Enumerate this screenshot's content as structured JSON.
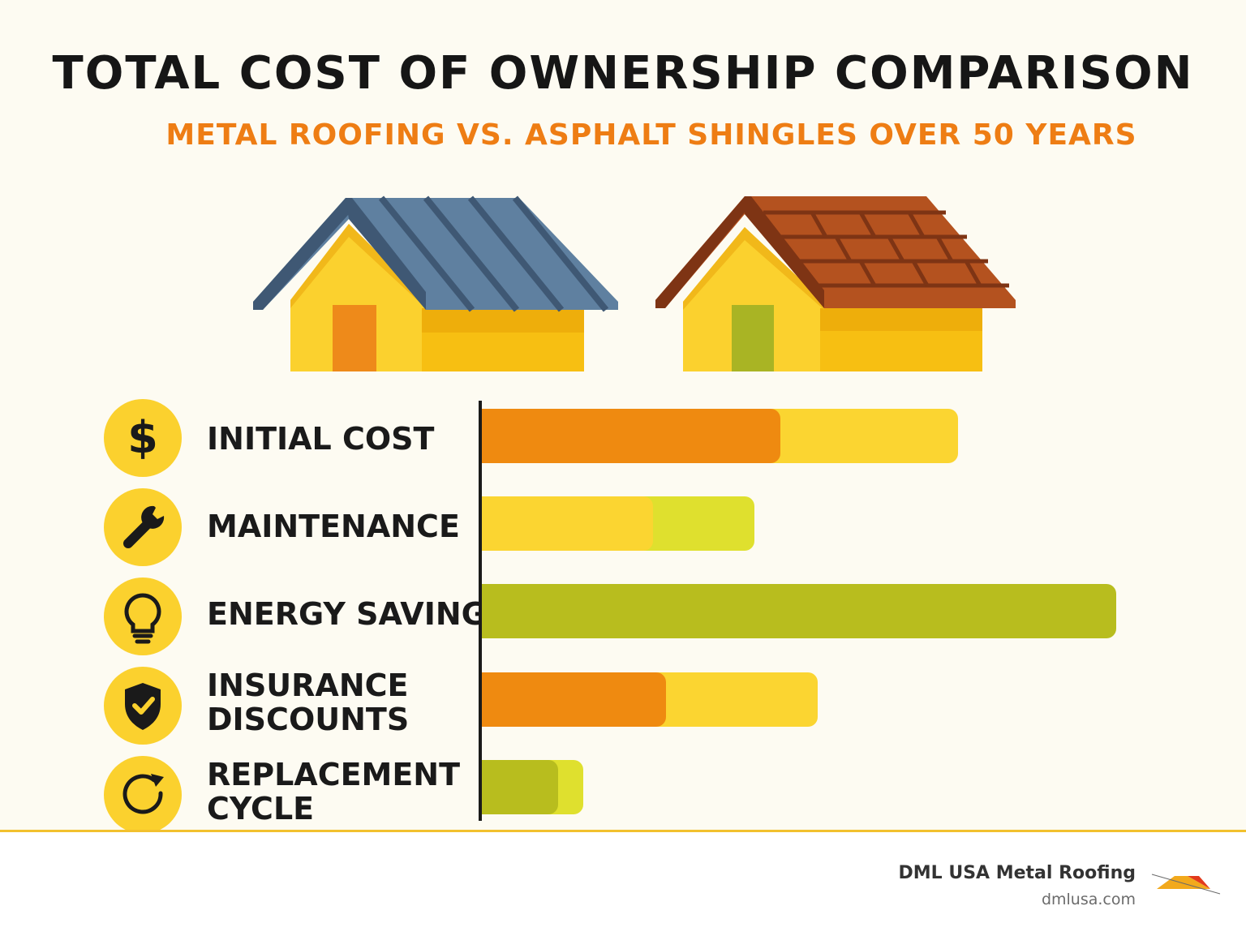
{
  "title": "TOTAL COST OF OWNERSHIP COMPARISON",
  "subtitle": "METAL ROOFING VS. ASPHALT SHINGLES OVER 50 YEARS",
  "colors": {
    "orange": "#ef8a10",
    "yellow": "#fbd531",
    "lime": "#dfe02e",
    "olive": "#b8bd1e",
    "subtitle": "#ee7d14",
    "icon_bg": "#fbd12e"
  },
  "houses": [
    {
      "roof": "metal",
      "roof_color": "#5f80a0",
      "door_color": "#ee8a1a"
    },
    {
      "roof": "asphalt shingles",
      "roof_color": "#b4521f",
      "door_color": "#a9b424"
    }
  ],
  "chart_data": {
    "type": "bar",
    "orientation": "horizontal",
    "value_unit": "relative bar length (0–1 of longest bar); no numeric values printed",
    "categories": [
      "INITIAL COST",
      "MAINTENANCE",
      "ENERGY SAVINGS",
      "INSURANCE DISCOUNTS",
      "REPLACEMENT CYCLE"
    ],
    "icons": [
      "dollar-icon",
      "wrench-icon",
      "lightbulb-icon",
      "shield-check-icon",
      "refresh-icon"
    ],
    "rows": [
      {
        "front": {
          "value": 0.47,
          "color": "#ef8a10"
        },
        "back": {
          "value": 0.75,
          "color": "#fbd531"
        }
      },
      {
        "front": {
          "value": 0.27,
          "color": "#fbd531"
        },
        "back": {
          "value": 0.43,
          "color": "#dfe02e"
        }
      },
      {
        "front": {
          "value": 1.0,
          "color": "#b8bd1e"
        },
        "back": null
      },
      {
        "front": {
          "value": 0.29,
          "color": "#ef8a10"
        },
        "back": {
          "value": 0.53,
          "color": "#fbd531"
        }
      },
      {
        "front": {
          "value": 0.12,
          "color": "#b8bd1e"
        },
        "back": {
          "value": 0.16,
          "color": "#dfe02e"
        }
      }
    ],
    "grid": false,
    "legend": "none"
  },
  "footer": {
    "brand": "DML USA Metal Roofing",
    "url": "dmlusa.com",
    "logo_text": "DML USA METAL ROOFING"
  }
}
